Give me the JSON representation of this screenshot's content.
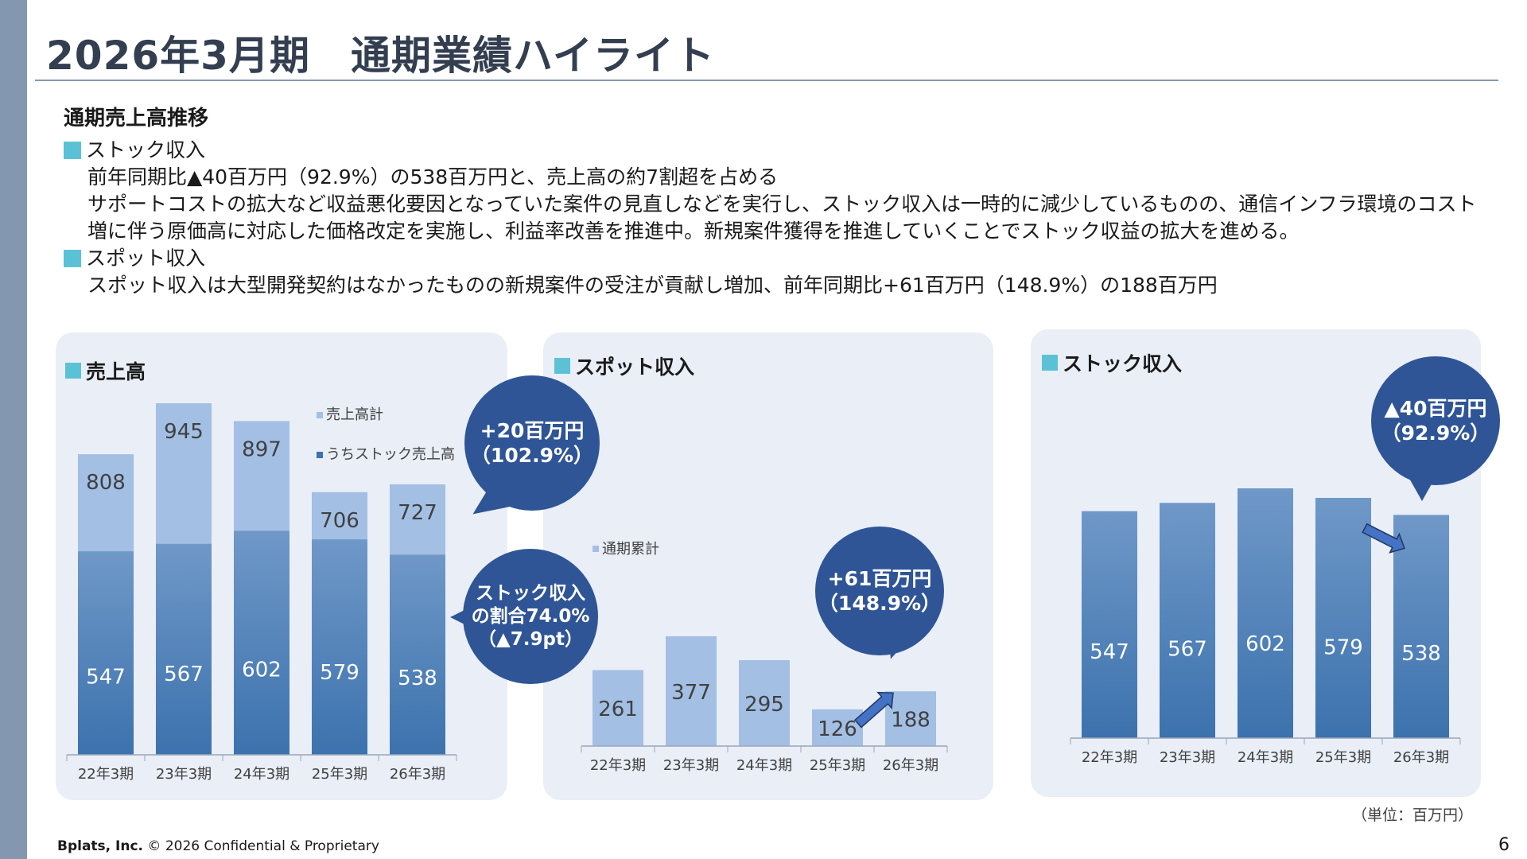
{
  "title": "2026年3月期　通期業績ハイライト",
  "summary": {
    "heading": "通期売上高推移",
    "stock_heading": "ストック収入",
    "stock_line1": "前年同期比▲40百万円（92.9%）の538百万円と、売上高の約7割超を占める",
    "stock_line2": "サポートコストの拡大など収益悪化要因となっていた案件の見直しなどを実行し、ストック収入は一時的に減少しているものの、通信インフラ環境のコスト増に伴う原価高に対応した価格改定を実施し、利益率改善を推進中。新規案件獲得を推進していくことでストック収益の拡大を進める。",
    "spot_heading": "スポット収入",
    "spot_line1": "スポット収入は大型開発契約はなかったものの新規案件の受注が貢献し増加、前年同期比+61百万円（148.9%）の188百万円"
  },
  "panels": {
    "sales": {
      "title": "売上高",
      "bubble_change_1": "+20百万円",
      "bubble_change_2": "（102.9%）",
      "bubble_ratio_1": "ストック収入",
      "bubble_ratio_2": "の割合74.0%",
      "bubble_ratio_3": "（▲7.9pt）"
    },
    "spot": {
      "title": "スポット収入",
      "bubble_1": "+61百万円",
      "bubble_2": "（148.9%）"
    },
    "stock": {
      "title": "ストック収入",
      "bubble_1": "▲40百万円",
      "bubble_2": "（92.9%）"
    }
  },
  "colors": {
    "total_bar": "#a3bfe4",
    "stock_bar_top": "#6f98c8",
    "stock_bar_bottom": "#3c72ad",
    "spot_bar": "#a3bfe4",
    "bubble": "#2f5597",
    "arrow": "#4472c4",
    "accent_square": "#5bc2d6"
  },
  "chart_data": [
    {
      "type": "bar",
      "title": "売上高",
      "categories": [
        "22年3期",
        "23年3期",
        "24年3期",
        "25年3期",
        "26年3期"
      ],
      "series": [
        {
          "name": "売上高計",
          "values": [
            808,
            945,
            897,
            706,
            727
          ]
        },
        {
          "name": "うちストック売上高",
          "values": [
            547,
            567,
            602,
            579,
            538
          ]
        }
      ],
      "ylim": [
        0,
        945
      ],
      "legend": "top-right"
    },
    {
      "type": "bar",
      "title": "スポット収入",
      "categories": [
        "22年3期",
        "23年3期",
        "24年3期",
        "25年3期",
        "26年3期"
      ],
      "series": [
        {
          "name": "通期累計",
          "values": [
            261,
            377,
            295,
            126,
            188
          ]
        }
      ],
      "ylim": [
        0,
        377
      ]
    },
    {
      "type": "bar",
      "title": "ストック収入",
      "categories": [
        "22年3期",
        "23年3期",
        "24年3期",
        "25年3期",
        "26年3期"
      ],
      "series": [
        {
          "values": [
            547,
            567,
            602,
            579,
            538
          ]
        }
      ],
      "ylim": [
        0,
        602
      ]
    }
  ],
  "unit_note": "（単位：百万円）",
  "footer": {
    "company": "Bplats, Inc.",
    "rest": " © 2026 Confidential & Proprietary"
  },
  "page_number": "6"
}
